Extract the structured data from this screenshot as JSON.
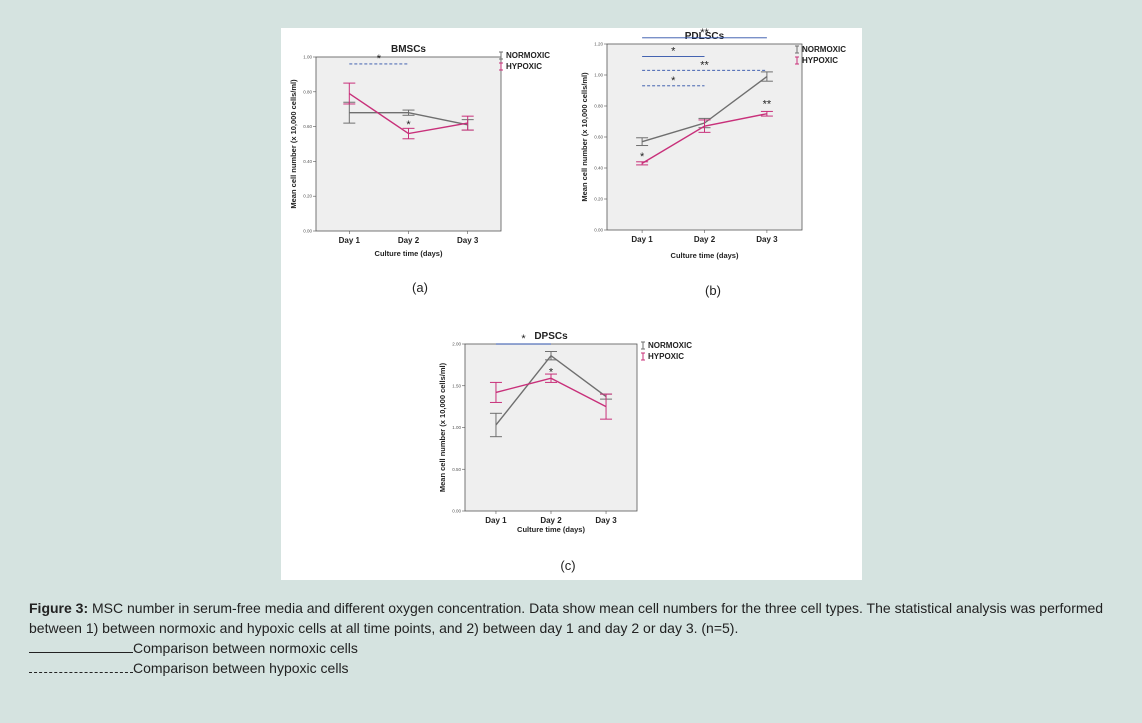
{
  "figure": {
    "caption_label": "Figure 3:",
    "caption_text": " MSC number in serum-free media and different oxygen concentration. Data show mean cell numbers for the three cell types. The statistical analysis was performed between 1) between normoxic and hypoxic cells at all time points, and 2) between day 1 and day 2 or day 3. (n=5).",
    "legend_solid_text": "Comparison between normoxic cells",
    "legend_dashed_text": "Comparison between hypoxic cells",
    "colors": {
      "normoxic": "#6f6f6f",
      "hypoxic": "#c8307a",
      "comparison": "#2b4fa8",
      "plot_bg": "#efefef"
    }
  },
  "chart_data": [
    {
      "type": "line",
      "panel_label": "(a)",
      "title": "BMSCs",
      "xlabel": "Culture time (days)",
      "ylabel": "Mean cell number (x 10,000 cells/ml)",
      "categories": [
        "Day 1",
        "Day 2",
        "Day 3"
      ],
      "ylim": [
        0,
        1.0
      ],
      "yticks": [
        "0.00",
        "0.20",
        "0.40",
        "0.60",
        "0.80",
        "1.00"
      ],
      "yticks_values": [
        0,
        0.2,
        0.4,
        0.6,
        0.8,
        1.0
      ],
      "series": [
        {
          "name": "NORMOXIC",
          "values": [
            0.68,
            0.68,
            0.61
          ],
          "err": [
            0.06,
            0.015,
            0.03
          ]
        },
        {
          "name": "HYPOXIC",
          "values": [
            0.79,
            0.56,
            0.62
          ],
          "err": [
            0.06,
            0.03,
            0.04
          ]
        }
      ],
      "annotations": [
        {
          "text": "*",
          "x": 2,
          "y": 0.61
        }
      ],
      "comparisons": [
        {
          "style": "dashed",
          "x1": 1,
          "x2": 2,
          "y": 0.96,
          "label": "*"
        }
      ]
    },
    {
      "type": "line",
      "panel_label": "(b)",
      "title": "PDLSCs",
      "xlabel": "Culture time (days)",
      "ylabel": "Mean cell number (x 10,000 cells/ml)",
      "categories": [
        "Day 1",
        "Day 2",
        "Day 3"
      ],
      "ylim": [
        0,
        1.2
      ],
      "yticks": [
        "0.00",
        "0.20",
        "0.40",
        "0.60",
        "0.80",
        "1.00",
        "1.20"
      ],
      "yticks_values": [
        0,
        0.2,
        0.4,
        0.6,
        0.8,
        1.0,
        1.2
      ],
      "series": [
        {
          "name": "NORMOXIC",
          "values": [
            0.57,
            0.69,
            0.99
          ],
          "err": [
            0.025,
            0.03,
            0.03
          ]
        },
        {
          "name": "HYPOXIC",
          "values": [
            0.43,
            0.67,
            0.75
          ],
          "err": [
            0.01,
            0.04,
            0.015
          ]
        }
      ],
      "annotations": [
        {
          "text": "*",
          "x": 1,
          "y": 0.47
        },
        {
          "text": "**",
          "x": 3,
          "y": 0.81
        }
      ],
      "comparisons": [
        {
          "style": "solid",
          "x1": 1,
          "x2": 3,
          "y": 1.24,
          "label": "**"
        },
        {
          "style": "solid",
          "x1": 1,
          "x2": 2,
          "y": 1.12,
          "label": "*"
        },
        {
          "style": "dashed",
          "x1": 1,
          "x2": 3,
          "y": 1.03,
          "label": "**"
        },
        {
          "style": "dashed",
          "x1": 1,
          "x2": 2,
          "y": 0.93,
          "label": "*"
        }
      ]
    },
    {
      "type": "line",
      "panel_label": "(c)",
      "title": "DPSCs",
      "xlabel": "Culture time (days)",
      "ylabel": "Mean cell number (x 10,000 cells/ml)",
      "categories": [
        "Day 1",
        "Day 2",
        "Day 3"
      ],
      "ylim": [
        0,
        2.0
      ],
      "yticks": [
        "0.00",
        "0.50",
        "1.00",
        "1.50",
        "2.00"
      ],
      "yticks_values": [
        0,
        0.5,
        1.0,
        1.5,
        2.0
      ],
      "series": [
        {
          "name": "NORMOXIC",
          "values": [
            1.03,
            1.86,
            1.37
          ],
          "err": [
            0.14,
            0.05,
            0.03
          ]
        },
        {
          "name": "HYPOXIC",
          "values": [
            1.42,
            1.59,
            1.25
          ],
          "err": [
            0.12,
            0.05,
            0.15
          ]
        }
      ],
      "annotations": [
        {
          "text": "*",
          "x": 2,
          "y": 1.66
        }
      ],
      "comparisons": [
        {
          "style": "solid",
          "x1": 1,
          "x2": 2,
          "y": 2.0,
          "label": "*"
        }
      ]
    }
  ]
}
